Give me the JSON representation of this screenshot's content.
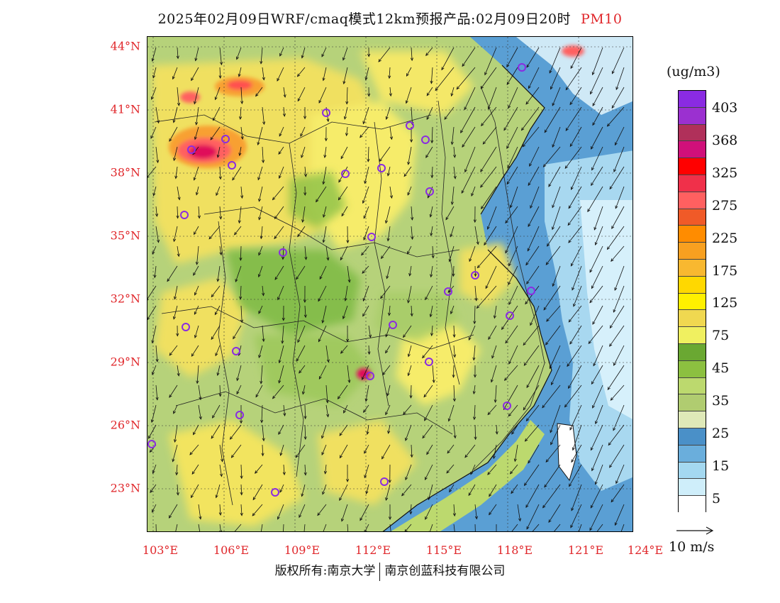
{
  "title": "2025年02月09日WRF/cmaq模式12km预报产品:02月09日20时",
  "variable": "PM10",
  "lat_labels": [
    "44°N",
    "41°N",
    "38°N",
    "35°N",
    "32°N",
    "29°N",
    "26°N",
    "23°N"
  ],
  "lon_labels": [
    "103°E",
    "106°E",
    "109°E",
    "112°E",
    "115°E",
    "118°E",
    "121°E",
    "124°E"
  ],
  "colorbar": {
    "unit": "(ug/m3)",
    "labels": [
      "403",
      "368",
      "325",
      "275",
      "225",
      "175",
      "125",
      "75",
      "45",
      "35",
      "25",
      "15",
      "5"
    ],
    "colors": [
      "#8a2be2",
      "#9b30d0",
      "#b0305a",
      "#d0107a",
      "#ff0000",
      "#f0304a",
      "#ff6060",
      "#f05a28",
      "#ff8c00",
      "#f8a020",
      "#f8b830",
      "#ffd800",
      "#fff000",
      "#f0d850",
      "#f0f060",
      "#6aa832",
      "#8cc040",
      "#bcd96e",
      "#b0cc70",
      "#dfe9b8",
      "#4a90c8",
      "#6aaedc",
      "#a4d8f0",
      "#cfeefa",
      "#ffffff"
    ]
  },
  "wind_reference": "10 m/s",
  "copyright": {
    "left": "版权所有:南京大学",
    "right": "南京创蓝科技有限公司"
  }
}
